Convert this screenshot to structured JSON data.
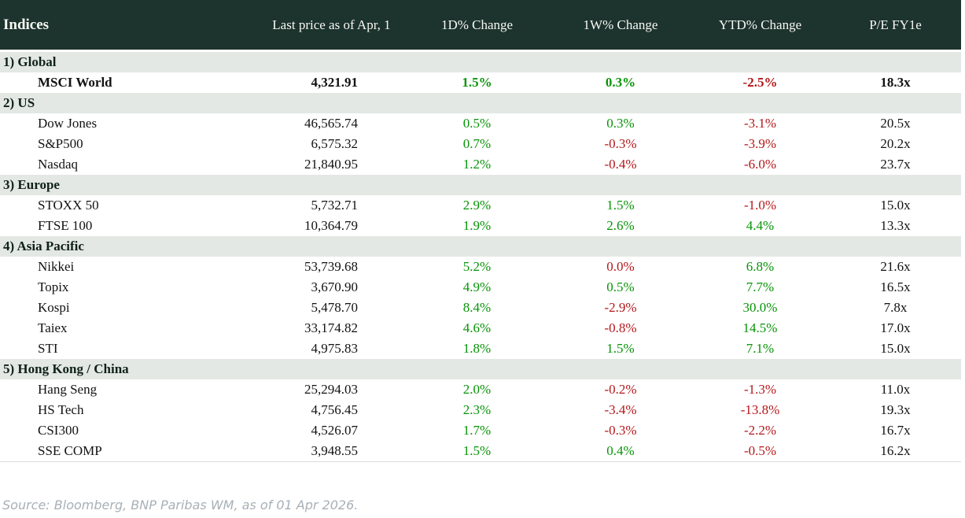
{
  "title": "Indices",
  "footer": {
    "source_note": "Source: Bloomberg, BNP Paribas WM, as of 01 Apr 2026."
  },
  "colors": {
    "positive": "#089408",
    "negative": "#b5171a",
    "header_bg": "#1d332d",
    "band_bg": "#e3e8e4"
  },
  "chart_data": {
    "type": "table",
    "columns": [
      "Indices",
      "Last price as of Apr, 1",
      "1D% Change",
      "1W% Change",
      "YTD% Change",
      "P/E FY1e"
    ],
    "sections": [
      {
        "label": "1) Global",
        "rows": [
          {
            "name": "MSCI World",
            "price": "4,321.91",
            "bold": true,
            "changes": [
              {
                "v": "1.5%",
                "t": "up"
              },
              {
                "v": "0.3%",
                "t": "up"
              },
              {
                "v": "-2.5%",
                "t": "down"
              }
            ],
            "pe": "18.3x"
          }
        ]
      },
      {
        "label": "2) US",
        "rows": [
          {
            "name": "Dow Jones",
            "price": "46,565.74",
            "changes": [
              {
                "v": "0.5%",
                "t": "up"
              },
              {
                "v": "0.3%",
                "t": "up"
              },
              {
                "v": "-3.1%",
                "t": "down"
              }
            ],
            "pe": "20.5x"
          },
          {
            "name": "S&P500",
            "price": "6,575.32",
            "changes": [
              {
                "v": "0.7%",
                "t": "up"
              },
              {
                "v": "-0.3%",
                "t": "down"
              },
              {
                "v": "-3.9%",
                "t": "down"
              }
            ],
            "pe": "20.2x"
          },
          {
            "name": "Nasdaq",
            "price": "21,840.95",
            "changes": [
              {
                "v": "1.2%",
                "t": "up"
              },
              {
                "v": "-0.4%",
                "t": "down"
              },
              {
                "v": "-6.0%",
                "t": "down"
              }
            ],
            "pe": "23.7x"
          }
        ]
      },
      {
        "label": "3) Europe",
        "rows": [
          {
            "name": "STOXX 50",
            "price": "5,732.71",
            "changes": [
              {
                "v": "2.9%",
                "t": "up"
              },
              {
                "v": "1.5%",
                "t": "up"
              },
              {
                "v": "-1.0%",
                "t": "down"
              }
            ],
            "pe": "15.0x"
          },
          {
            "name": "FTSE 100",
            "price": "10,364.79",
            "changes": [
              {
                "v": "1.9%",
                "t": "up"
              },
              {
                "v": "2.6%",
                "t": "up"
              },
              {
                "v": "4.4%",
                "t": "up"
              }
            ],
            "pe": "13.3x"
          }
        ]
      },
      {
        "label": "4) Asia Pacific",
        "rows": [
          {
            "name": "Nikkei",
            "price": "53,739.68",
            "changes": [
              {
                "v": "5.2%",
                "t": "up"
              },
              {
                "v": "0.0%",
                "t": "down"
              },
              {
                "v": "6.8%",
                "t": "up"
              }
            ],
            "pe": "21.6x"
          },
          {
            "name": "Topix",
            "price": "3,670.90",
            "changes": [
              {
                "v": "4.9%",
                "t": "up"
              },
              {
                "v": "0.5%",
                "t": "up"
              },
              {
                "v": "7.7%",
                "t": "up"
              }
            ],
            "pe": "16.5x"
          },
          {
            "name": "Kospi",
            "price": "5,478.70",
            "changes": [
              {
                "v": "8.4%",
                "t": "up"
              },
              {
                "v": "-2.9%",
                "t": "down"
              },
              {
                "v": "30.0%",
                "t": "up"
              }
            ],
            "pe": "7.8x"
          },
          {
            "name": "Taiex",
            "price": "33,174.82",
            "changes": [
              {
                "v": "4.6%",
                "t": "up"
              },
              {
                "v": "-0.8%",
                "t": "down"
              },
              {
                "v": "14.5%",
                "t": "up"
              }
            ],
            "pe": "17.0x"
          },
          {
            "name": "STI",
            "price": "4,975.83",
            "changes": [
              {
                "v": "1.8%",
                "t": "up"
              },
              {
                "v": "1.5%",
                "t": "up"
              },
              {
                "v": "7.1%",
                "t": "up"
              }
            ],
            "pe": "15.0x"
          }
        ]
      },
      {
        "label": "5) Hong Kong / China",
        "rows": [
          {
            "name": "Hang Seng",
            "price": "25,294.03",
            "changes": [
              {
                "v": "2.0%",
                "t": "up"
              },
              {
                "v": "-0.2%",
                "t": "down"
              },
              {
                "v": "-1.3%",
                "t": "down"
              }
            ],
            "pe": "11.0x"
          },
          {
            "name": "HS Tech",
            "price": "4,756.45",
            "changes": [
              {
                "v": "2.3%",
                "t": "up"
              },
              {
                "v": "-3.4%",
                "t": "down"
              },
              {
                "v": "-13.8%",
                "t": "down"
              }
            ],
            "pe": "19.3x"
          },
          {
            "name": "CSI300",
            "price": "4,526.07",
            "changes": [
              {
                "v": "1.7%",
                "t": "up"
              },
              {
                "v": "-0.3%",
                "t": "down"
              },
              {
                "v": "-2.2%",
                "t": "down"
              }
            ],
            "pe": "16.7x"
          },
          {
            "name": "SSE COMP",
            "price": "3,948.55",
            "changes": [
              {
                "v": "1.5%",
                "t": "up"
              },
              {
                "v": "0.4%",
                "t": "up"
              },
              {
                "v": "-0.5%",
                "t": "down"
              }
            ],
            "pe": "16.2x"
          }
        ]
      }
    ]
  }
}
